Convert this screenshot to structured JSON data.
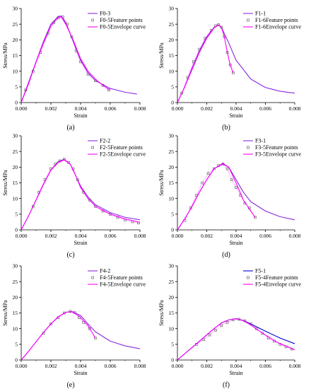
{
  "chart_data": [
    {
      "type": "line",
      "panel_label": "(a)",
      "xlabel": "Strain",
      "ylabel": "Stress/MPa",
      "xlim": [
        0,
        0.008
      ],
      "ylim": [
        0,
        30
      ],
      "xticks": [
        "0.000",
        "0.002",
        "0.004",
        "0.006",
        "0.008"
      ],
      "yticks": [
        "0",
        "5",
        "10",
        "15",
        "20",
        "25",
        "30"
      ],
      "legend_position": "top-right",
      "series": [
        {
          "name": "F0-3",
          "kind": "line",
          "color": "#8a2be2",
          "x": [
            0,
            0.0005,
            0.001,
            0.0015,
            0.002,
            0.0025,
            0.0027,
            0.003,
            0.0035,
            0.004,
            0.0045,
            0.005,
            0.006,
            0.007,
            0.0078
          ],
          "y": [
            0,
            6.5,
            13,
            19.5,
            25,
            27.5,
            27.6,
            25.5,
            19.5,
            13.5,
            9.5,
            7,
            4.5,
            3.3,
            2.7
          ]
        },
        {
          "name": "F0-5Feature points",
          "kind": "markers",
          "color": "#555555",
          "x": [
            0.0003,
            0.0008,
            0.0013,
            0.0018,
            0.0022,
            0.0025,
            0.0028,
            0.0031,
            0.0034,
            0.0037,
            0.004,
            0.0045,
            0.005,
            0.0055,
            0.0059
          ],
          "y": [
            4,
            10,
            16,
            22,
            25.5,
            27,
            27.3,
            25,
            21,
            16.5,
            13,
            9,
            7,
            5.5,
            4
          ]
        },
        {
          "name": "F0-5Envelope curve",
          "kind": "line",
          "color": "#ff00ff",
          "x": [
            0,
            0.0005,
            0.001,
            0.0015,
            0.002,
            0.0025,
            0.0027,
            0.003,
            0.0035,
            0.004,
            0.0045,
            0.005,
            0.0055,
            0.006
          ],
          "y": [
            0,
            6,
            13,
            19,
            24.5,
            27.2,
            27.3,
            25,
            20,
            14,
            10,
            7.5,
            5.5,
            4
          ]
        }
      ]
    },
    {
      "type": "line",
      "panel_label": "(b)",
      "xlabel": "Strain",
      "ylabel": "Stress/MPa",
      "xlim": [
        0,
        0.008
      ],
      "ylim": [
        0,
        30
      ],
      "xticks": [
        "0.000",
        "0.002",
        "0.004",
        "0.006",
        "0.008"
      ],
      "yticks": [
        "0",
        "5",
        "10",
        "15",
        "20",
        "25",
        "30"
      ],
      "legend_position": "top-right",
      "series": [
        {
          "name": "F1-1",
          "kind": "line",
          "color": "#8a2be2",
          "x": [
            0,
            0.0005,
            0.001,
            0.0015,
            0.002,
            0.0025,
            0.0028,
            0.003,
            0.0035,
            0.004,
            0.005,
            0.006,
            0.007,
            0.008
          ],
          "y": [
            0,
            5,
            11,
            16.5,
            21,
            24,
            24.7,
            24,
            19,
            13.5,
            7.5,
            4.8,
            3.6,
            3
          ]
        },
        {
          "name": "F1-6Feature points",
          "kind": "markers",
          "color": "#555555",
          "x": [
            0.0003,
            0.0007,
            0.0011,
            0.0015,
            0.0019,
            0.0023,
            0.0026,
            0.0028,
            0.003,
            0.0032,
            0.0034,
            0.0036,
            0.0038
          ],
          "y": [
            3,
            8,
            13,
            17,
            20.5,
            23,
            24.5,
            24.8,
            24,
            21,
            16,
            12,
            9.5
          ]
        },
        {
          "name": "F1-6Envelope curve",
          "kind": "line",
          "color": "#ff00ff",
          "x": [
            0,
            0.0005,
            0.001,
            0.0015,
            0.002,
            0.0025,
            0.0028,
            0.003,
            0.0032,
            0.0034,
            0.0036,
            0.0038
          ],
          "y": [
            0,
            5,
            10.5,
            16,
            20.5,
            23.8,
            24.8,
            24,
            21,
            16,
            12,
            9.5
          ]
        }
      ]
    },
    {
      "type": "line",
      "panel_label": "(c)",
      "xlabel": "Strain",
      "ylabel": "Stress/MPa",
      "xlim": [
        0,
        0.008
      ],
      "ylim": [
        0,
        30
      ],
      "xticks": [
        "0.000",
        "0.002",
        "0.004",
        "0.006",
        "0.008"
      ],
      "yticks": [
        "0",
        "5",
        "10",
        "15",
        "20",
        "25",
        "30"
      ],
      "legend_position": "top-right",
      "series": [
        {
          "name": "F2-2",
          "kind": "line",
          "color": "#8a2be2",
          "x": [
            0,
            0.0005,
            0.001,
            0.0015,
            0.002,
            0.0025,
            0.0029,
            0.0033,
            0.0037,
            0.004,
            0.0045,
            0.005,
            0.006,
            0.007,
            0.008
          ],
          "y": [
            0,
            4.5,
            9.5,
            14.5,
            19,
            21.8,
            22.5,
            21,
            17,
            14,
            10.5,
            8,
            5.5,
            4,
            3.2
          ]
        },
        {
          "name": "F2-5Feature points",
          "kind": "markers",
          "color": "#555555",
          "x": [
            0.0008,
            0.0012,
            0.0016,
            0.002,
            0.0023,
            0.0026,
            0.0029,
            0.0032,
            0.0035,
            0.0038,
            0.0042,
            0.0046,
            0.005,
            0.0055,
            0.006,
            0.0065,
            0.007,
            0.0075,
            0.0079
          ],
          "y": [
            7.5,
            12,
            16,
            19.5,
            21,
            22,
            22.5,
            21.5,
            19.5,
            16,
            12,
            9.5,
            7.5,
            6,
            5,
            4,
            3.2,
            2.6,
            2.2
          ]
        },
        {
          "name": "F2-5Envelope curve",
          "kind": "line",
          "color": "#ff00ff",
          "x": [
            0,
            0.0005,
            0.001,
            0.0015,
            0.002,
            0.0025,
            0.0029,
            0.0033,
            0.0037,
            0.004,
            0.0045,
            0.005,
            0.006,
            0.007,
            0.008
          ],
          "y": [
            0,
            4.5,
            9.5,
            14.5,
            19,
            21.5,
            22.3,
            21,
            17,
            13.5,
            10,
            7.5,
            5,
            3.5,
            2.4
          ]
        }
      ]
    },
    {
      "type": "line",
      "panel_label": "(d)",
      "xlabel": "Strain",
      "ylabel": "Stress/MPa",
      "xlim": [
        0,
        0.008
      ],
      "ylim": [
        0,
        30
      ],
      "xticks": [
        "0.000",
        "0.002",
        "0.004",
        "0.006",
        "0.008"
      ],
      "yticks": [
        "0",
        "5",
        "10",
        "15",
        "20",
        "25",
        "30"
      ],
      "legend_position": "top-right",
      "series": [
        {
          "name": "F3-1",
          "kind": "line",
          "color": "#8a2be2",
          "x": [
            0,
            0.0005,
            0.001,
            0.0015,
            0.002,
            0.0025,
            0.0031,
            0.0035,
            0.004,
            0.0045,
            0.005,
            0.006,
            0.007,
            0.008
          ],
          "y": [
            0,
            3.5,
            7.5,
            12,
            16,
            19.5,
            21,
            20,
            16,
            12,
            9,
            6,
            4.2,
            3.2
          ]
        },
        {
          "name": "F3-5Feature points",
          "kind": "markers",
          "color": "#555555",
          "x": [
            0.0005,
            0.0009,
            0.0013,
            0.0017,
            0.0021,
            0.0025,
            0.0028,
            0.0031,
            0.0034,
            0.0037,
            0.004,
            0.0043,
            0.0046,
            0.0049,
            0.0053
          ],
          "y": [
            3,
            7,
            11,
            15,
            18,
            19.5,
            20.5,
            21,
            19.5,
            16,
            13.5,
            11,
            8.5,
            7,
            4
          ]
        },
        {
          "name": "F3-5Envelope curve",
          "kind": "line",
          "color": "#ff00ff",
          "x": [
            0,
            0.0005,
            0.001,
            0.0015,
            0.002,
            0.0025,
            0.0031,
            0.0035,
            0.004,
            0.0045,
            0.005,
            0.0053
          ],
          "y": [
            0,
            3.5,
            7.5,
            12,
            16,
            19.5,
            21.2,
            20,
            15,
            9.5,
            6,
            4
          ]
        }
      ]
    },
    {
      "type": "line",
      "panel_label": "(e)",
      "xlabel": "Strain",
      "ylabel": "Stress/MPa",
      "xlim": [
        0,
        0.008
      ],
      "ylim": [
        0,
        30
      ],
      "xticks": [
        "0.000",
        "0.002",
        "0.004",
        "0.006",
        "0.008"
      ],
      "yticks": [
        "0",
        "5",
        "10",
        "15",
        "20",
        "25",
        "30"
      ],
      "legend_position": "top-right",
      "series": [
        {
          "name": "F4-2",
          "kind": "line",
          "color": "#8a2be2",
          "x": [
            0,
            0.0005,
            0.001,
            0.0015,
            0.002,
            0.0025,
            0.003,
            0.0034,
            0.004,
            0.0045,
            0.005,
            0.006,
            0.007,
            0.008
          ],
          "y": [
            0,
            2.8,
            5.8,
            8.8,
            11.5,
            13.8,
            15.2,
            15.5,
            14.2,
            11.5,
            9,
            6,
            4.5,
            3.6
          ]
        },
        {
          "name": "F4-5Feature points",
          "kind": "markers",
          "color": "#555555",
          "x": [
            0.0015,
            0.002,
            0.0025,
            0.0029,
            0.0033,
            0.0036,
            0.0039,
            0.0042,
            0.0046,
            0.005
          ],
          "y": [
            8.5,
            11.5,
            13.5,
            15,
            15.5,
            15.2,
            13.5,
            12,
            10,
            7
          ]
        },
        {
          "name": "F4-5Envelope curve",
          "kind": "line",
          "color": "#ff00ff",
          "x": [
            0,
            0.0005,
            0.001,
            0.0015,
            0.002,
            0.0025,
            0.003,
            0.0034,
            0.0039,
            0.0045,
            0.005
          ],
          "y": [
            0,
            2.8,
            5.8,
            8.8,
            11.5,
            13.8,
            15.2,
            15.4,
            14,
            11,
            7
          ]
        }
      ]
    },
    {
      "type": "line",
      "panel_label": "(f)",
      "xlabel": "Strain",
      "ylabel": "Stress/MPa",
      "xlim": [
        0,
        0.008
      ],
      "ylim": [
        0,
        30
      ],
      "xticks": [
        "0.000",
        "0.002",
        "0.004",
        "0.006",
        "0.008"
      ],
      "yticks": [
        "0",
        "5",
        "10",
        "15",
        "20",
        "25",
        "30"
      ],
      "legend_position": "top-right",
      "series": [
        {
          "name": "F5-1",
          "kind": "line",
          "color": "#0000cd",
          "x": [
            0,
            0.0005,
            0.001,
            0.0015,
            0.002,
            0.0025,
            0.003,
            0.0035,
            0.004,
            0.0045,
            0.005,
            0.006,
            0.007,
            0.008
          ],
          "y": [
            0,
            2,
            4,
            6,
            8,
            10,
            11.8,
            12.8,
            13.2,
            12.6,
            11.5,
            9.2,
            7,
            5.2
          ]
        },
        {
          "name": "F5-4Feature points",
          "kind": "markers",
          "color": "#555555",
          "x": [
            0.0013,
            0.0018,
            0.0022,
            0.0026,
            0.003,
            0.0034,
            0.0038,
            0.0042,
            0.0046,
            0.005,
            0.0054,
            0.0058,
            0.0062,
            0.0066,
            0.007,
            0.0074,
            0.0078
          ],
          "y": [
            5,
            6.5,
            8,
            9.5,
            11,
            12,
            12.8,
            13,
            12.5,
            11.5,
            10,
            8.5,
            7,
            6,
            5,
            4.2,
            3.5
          ]
        },
        {
          "name": "F5-4Envelope curve",
          "kind": "line",
          "color": "#ff00ff",
          "x": [
            0,
            0.0005,
            0.001,
            0.0015,
            0.002,
            0.0025,
            0.003,
            0.0035,
            0.004,
            0.0045,
            0.005,
            0.0055,
            0.006,
            0.0065,
            0.007,
            0.0075,
            0.008
          ],
          "y": [
            0,
            2,
            4,
            6,
            8,
            10,
            11.8,
            12.8,
            13.2,
            12.5,
            11.2,
            9.5,
            8,
            6.5,
            5.2,
            4.3,
            3.2
          ]
        }
      ]
    }
  ]
}
